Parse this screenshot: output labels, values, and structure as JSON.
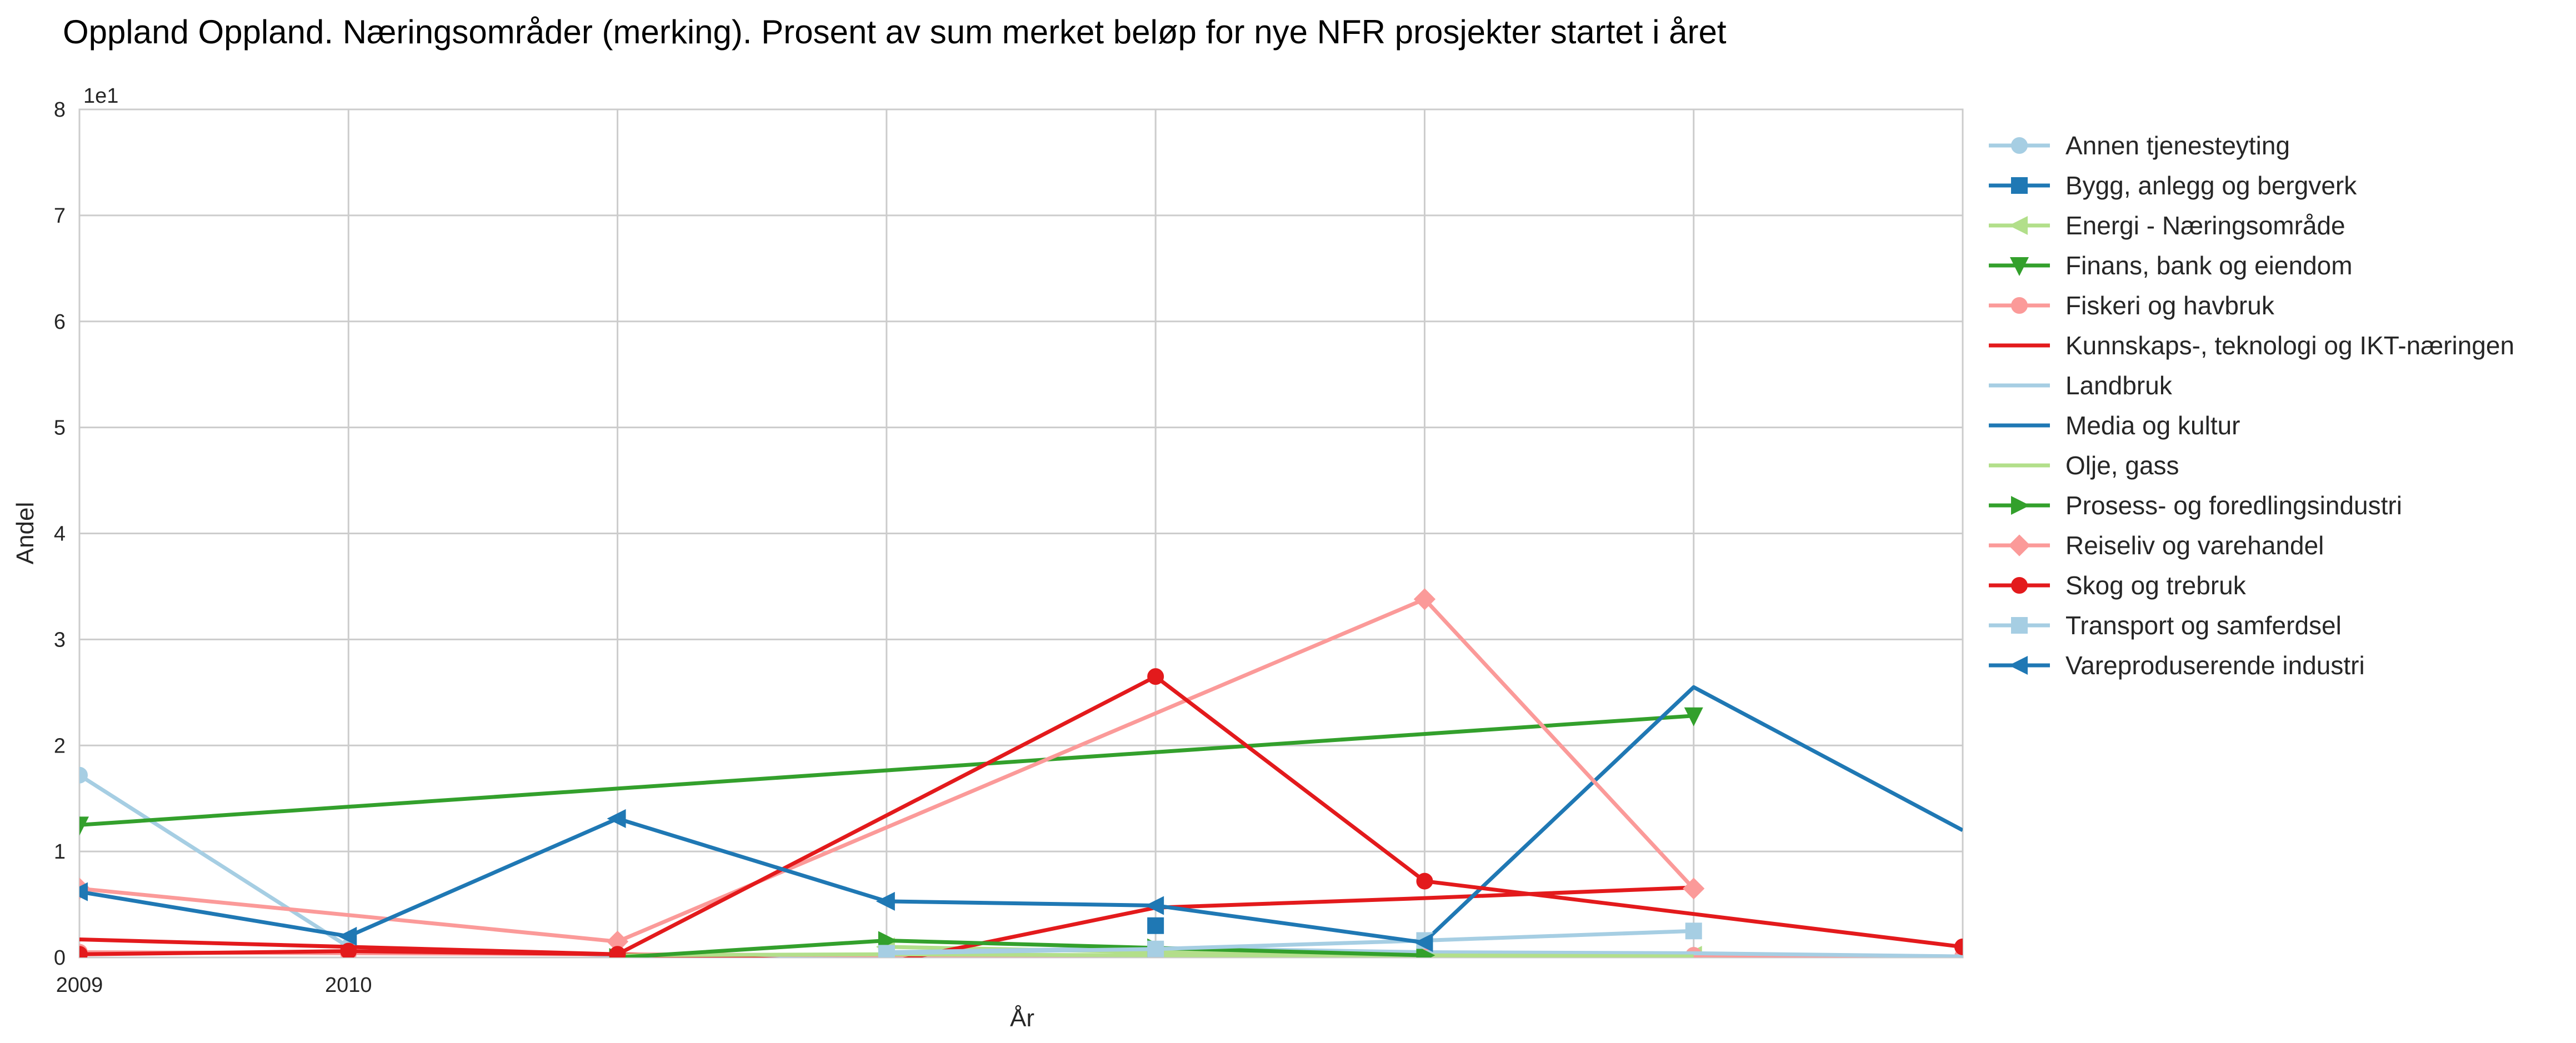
{
  "chart_data": {
    "type": "line",
    "title": "Oppland Oppland. Næringsområder (merking). Prosent av sum merket beløp for nye NFR prosjekter startet i året",
    "xlabel": "År",
    "ylabel": "Andel",
    "y_multiplier_label": "1e1",
    "x_tick_labels": [
      "2009",
      "2010"
    ],
    "y_tick_labels": [
      "0",
      "1",
      "2",
      "3",
      "4",
      "5",
      "6",
      "7",
      "8"
    ],
    "xlim": [
      2009,
      2016
    ],
    "ylim": [
      0,
      80
    ],
    "grid": true,
    "legend_position": "right",
    "series": [
      {
        "name": "Annen tjenesteyting",
        "color": "#a6cee3",
        "marker": "circle",
        "points": [
          [
            2009,
            17.2
          ],
          [
            2010,
            1.0
          ],
          [
            2011,
            0.2
          ],
          [
            2012,
            0.1
          ],
          [
            2013,
            0.2
          ],
          [
            2014,
            0.2
          ],
          [
            2015,
            0.2
          ],
          [
            2016,
            0.1
          ]
        ]
      },
      {
        "name": "Bygg, anlegg og bergverk",
        "color": "#1f78b4",
        "marker": "square",
        "points": [
          [
            2013,
            3.0
          ]
        ]
      },
      {
        "name": "Energi - Næringsområde",
        "color": "#b2df8a",
        "marker": "triangle-left",
        "points": [
          [
            2012,
            1.0
          ],
          [
            2013,
            0.5
          ],
          [
            2014,
            0.3
          ],
          [
            2015,
            0.2
          ],
          [
            2016,
            0.1
          ]
        ]
      },
      {
        "name": "Finans, bank og eiendom",
        "color": "#33a02c",
        "marker": "triangle-down",
        "points": [
          [
            2009,
            12.5
          ],
          [
            2015,
            22.8
          ]
        ]
      },
      {
        "name": "Fiskeri og havbruk",
        "color": "#fb9a99",
        "marker": "circle",
        "points": [
          [
            2009,
            0.5
          ],
          [
            2010,
            0.4
          ],
          [
            2011,
            0.3
          ],
          [
            2012,
            0.2
          ],
          [
            2013,
            0.2
          ],
          [
            2014,
            0.2
          ],
          [
            2015,
            0.2
          ],
          [
            2016,
            0.1
          ]
        ]
      },
      {
        "name": "Kunnskaps-, teknologi og IKT-næringen",
        "color": "#e31a1c",
        "marker": "none",
        "points": [
          [
            2009,
            1.7
          ],
          [
            2010,
            1.0
          ],
          [
            2011,
            0.3
          ],
          [
            2012,
            -0.5
          ],
          [
            2013,
            4.7
          ],
          [
            2014,
            5.6
          ],
          [
            2015,
            6.6
          ]
        ]
      },
      {
        "name": "Landbruk",
        "color": "#a6cee3",
        "marker": "none",
        "points": [
          [
            2012,
            0.5
          ],
          [
            2013,
            0.9
          ],
          [
            2014,
            0.5
          ],
          [
            2015,
            0.4
          ],
          [
            2016,
            0.1
          ]
        ]
      },
      {
        "name": "Media og kultur",
        "color": "#1f78b4",
        "marker": "none",
        "points": [
          [
            2014,
            1.5
          ],
          [
            2015,
            25.5
          ],
          [
            2016,
            12.0
          ]
        ]
      },
      {
        "name": "Olje, gass",
        "color": "#b2df8a",
        "marker": "none",
        "points": [
          [
            2011,
            0.2
          ],
          [
            2012,
            0.3
          ],
          [
            2013,
            0.2
          ],
          [
            2014,
            0.2
          ],
          [
            2015,
            0.1
          ]
        ]
      },
      {
        "name": "Prosess- og foredlingsindustri",
        "color": "#33a02c",
        "marker": "triangle-right",
        "points": [
          [
            2011,
            0.0
          ],
          [
            2012,
            1.6
          ],
          [
            2013,
            0.9
          ],
          [
            2014,
            0.2
          ]
        ]
      },
      {
        "name": "Reiseliv og varehandel",
        "color": "#fb9a99",
        "marker": "diamond",
        "points": [
          [
            2009,
            6.5
          ],
          [
            2011,
            1.5
          ],
          [
            2014,
            33.8
          ],
          [
            2015,
            6.5
          ]
        ]
      },
      {
        "name": "Skog og trebruk",
        "color": "#e31a1c",
        "marker": "circle",
        "points": [
          [
            2009,
            0.3
          ],
          [
            2010,
            0.6
          ],
          [
            2011,
            0.3
          ],
          [
            2013,
            26.5
          ],
          [
            2014,
            7.2
          ],
          [
            2016,
            1.0
          ]
        ]
      },
      {
        "name": "Transport og samferdsel",
        "color": "#a6cee3",
        "marker": "square",
        "points": [
          [
            2012,
            0.4
          ],
          [
            2013,
            0.8
          ],
          [
            2014,
            1.6
          ],
          [
            2015,
            2.5
          ]
        ]
      },
      {
        "name": "Vareproduserende industri",
        "color": "#1f78b4",
        "marker": "triangle-left",
        "points": [
          [
            2009,
            6.2
          ],
          [
            2010,
            2.0
          ],
          [
            2011,
            13.1
          ],
          [
            2012,
            5.3
          ],
          [
            2013,
            4.9
          ],
          [
            2014,
            1.4
          ]
        ]
      }
    ]
  }
}
